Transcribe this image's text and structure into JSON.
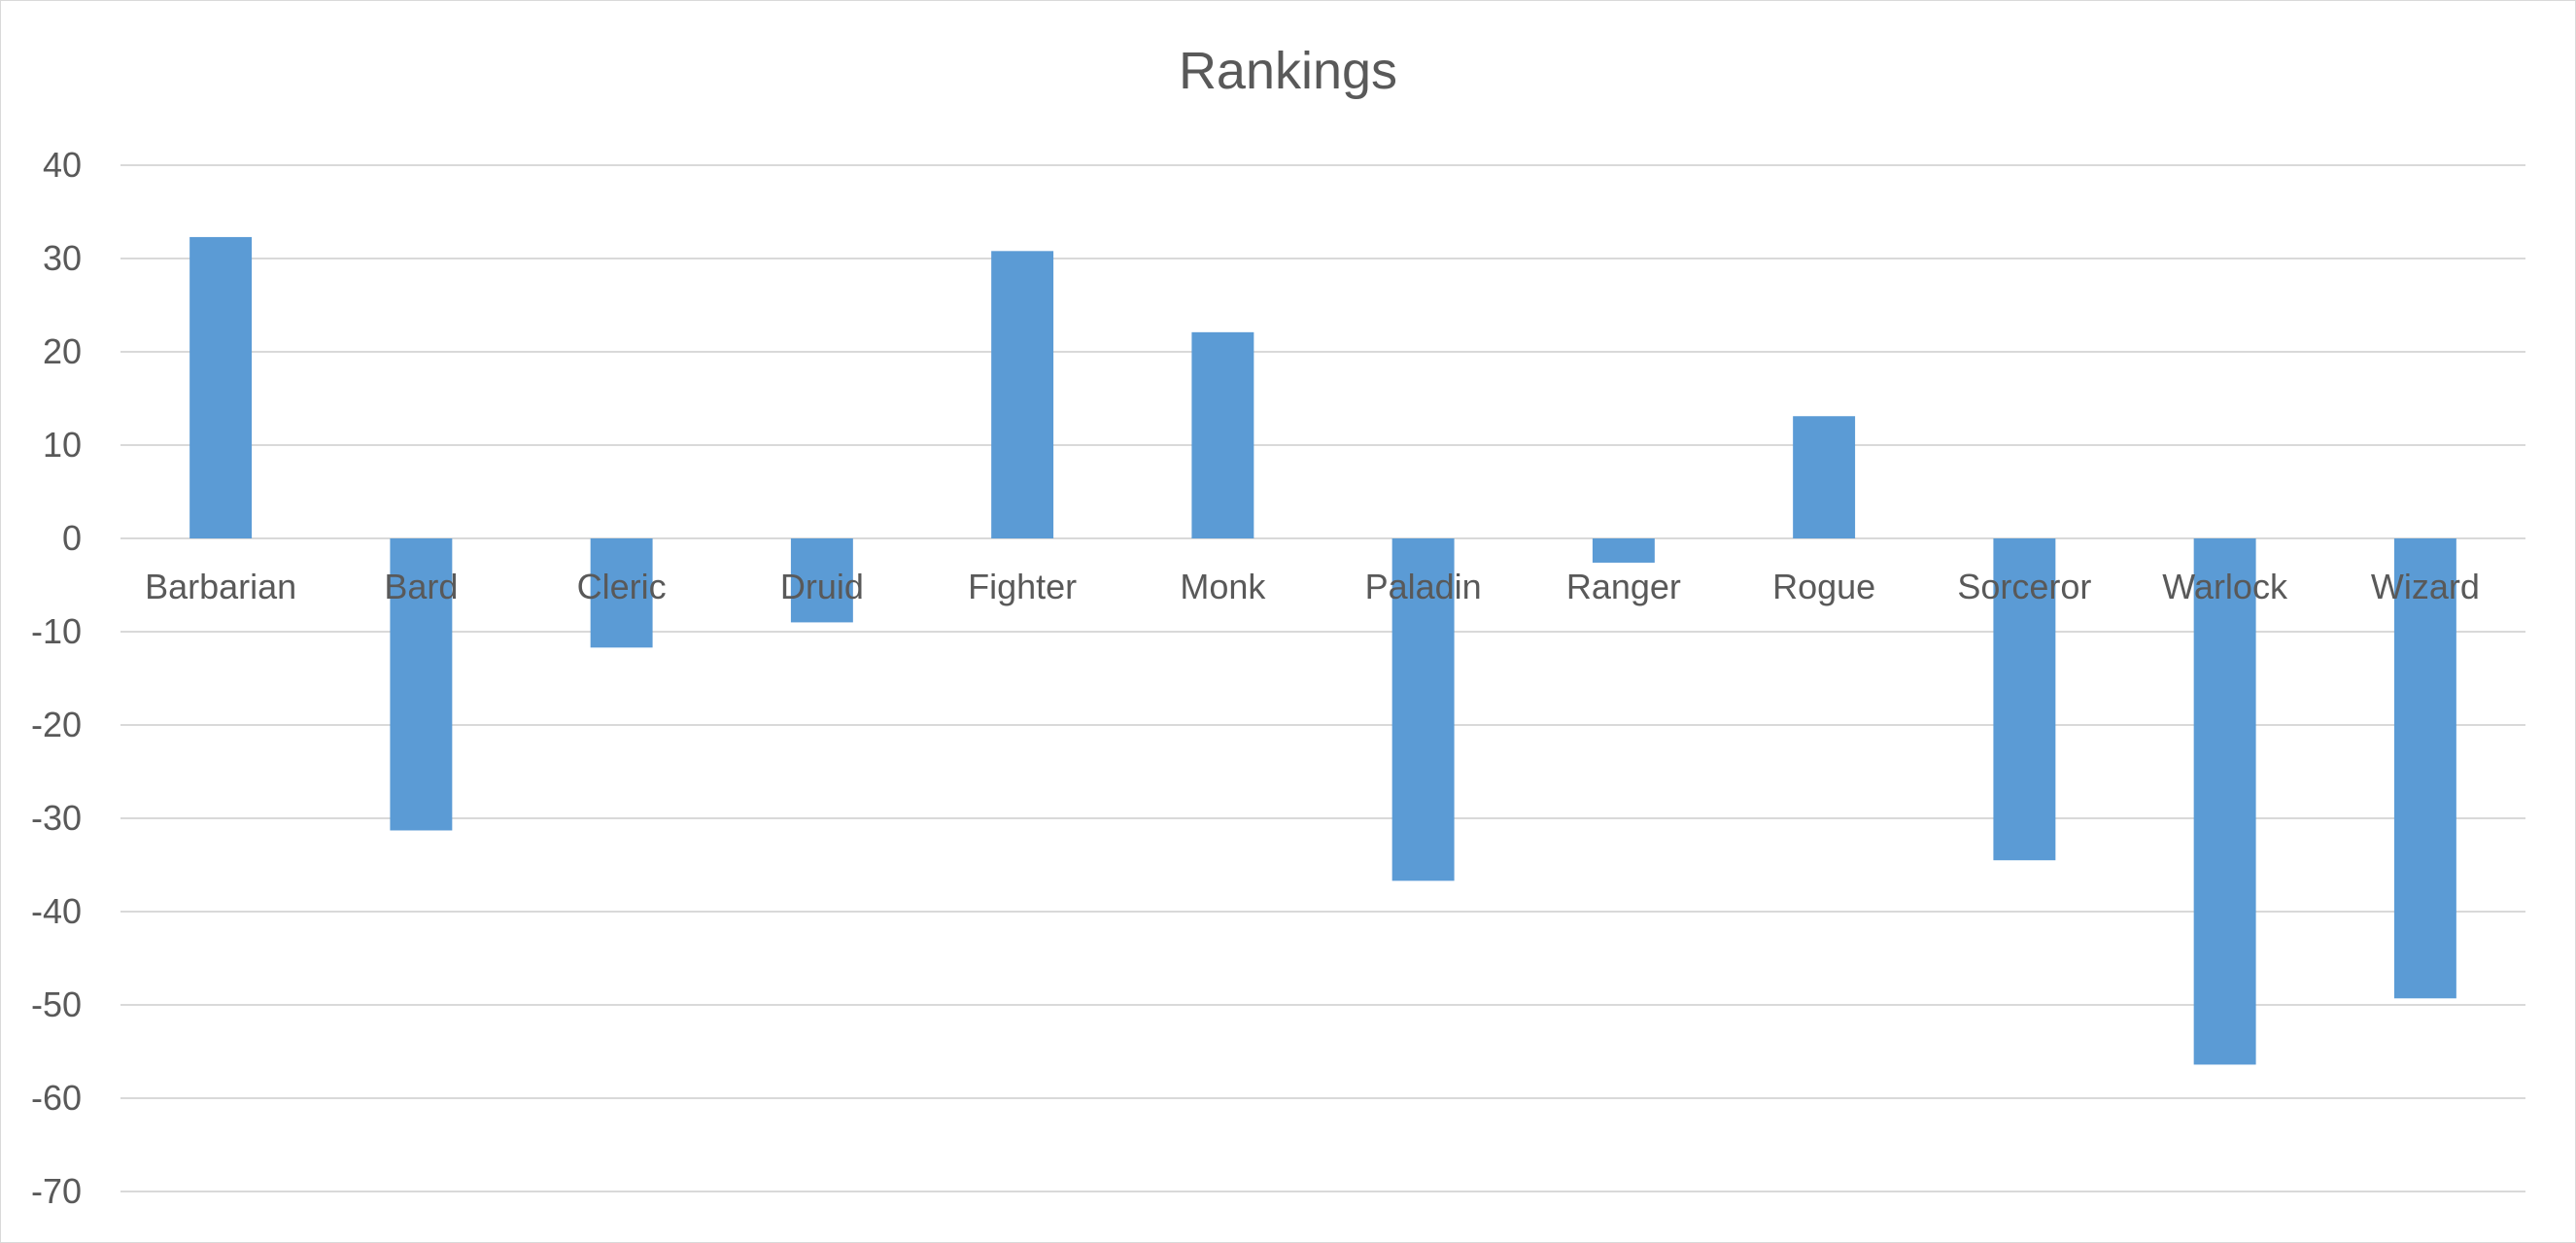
{
  "chart_data": {
    "type": "bar",
    "title": "Rankings",
    "xlabel": "",
    "ylabel": "",
    "categories": [
      "Barbarian",
      "Bard",
      "Cleric",
      "Druid",
      "Fighter",
      "Monk",
      "Paladin",
      "Ranger",
      "Rogue",
      "Sorceror",
      "Warlock",
      "Wizard"
    ],
    "values": [
      32.3,
      -31.3,
      -11.7,
      -9.0,
      30.8,
      22.1,
      -36.7,
      -2.6,
      13.1,
      -34.5,
      -56.4,
      -49.3
    ],
    "ylim": [
      -70,
      40
    ],
    "yticks": [
      40,
      30,
      20,
      10,
      0,
      -10,
      -20,
      -30,
      -40,
      -50,
      -60,
      -70
    ],
    "grid": true,
    "legend": "none",
    "colors": {
      "bar": "#5b9bd5",
      "grid": "#d9d9d9",
      "text": "#595959"
    }
  }
}
